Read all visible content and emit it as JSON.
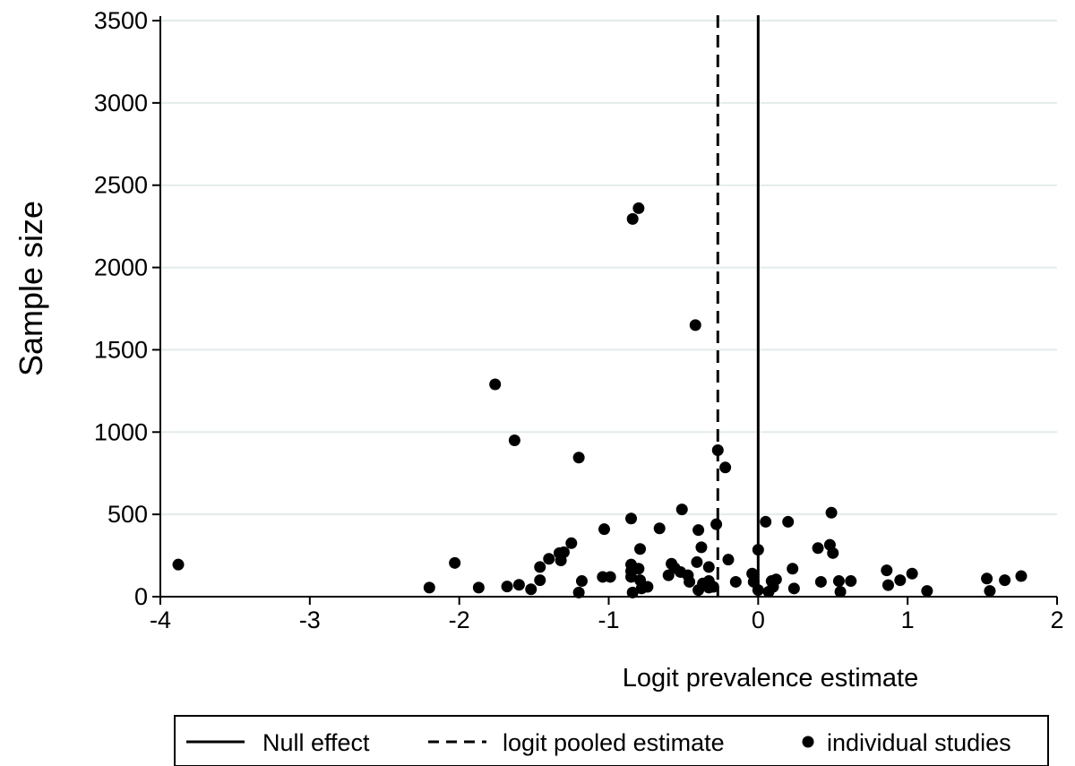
{
  "chart_data": {
    "type": "scatter",
    "title": "",
    "xlabel": "Logit prevalence estimate",
    "ylabel": "Sample size",
    "xlim": [
      -4,
      2
    ],
    "ylim": [
      0,
      3500
    ],
    "x_ticks": [
      -4,
      -3,
      -2,
      -1,
      0,
      1,
      2
    ],
    "y_ticks": [
      0,
      500,
      1000,
      1500,
      2000,
      2500,
      3000,
      3500
    ],
    "grid": "horizontal",
    "legend_position": "bottom",
    "reference_lines": [
      {
        "name": "Null effect",
        "style": "solid",
        "x": 0
      },
      {
        "name": "logit pooled estimate",
        "style": "dashed",
        "x": -0.27
      }
    ],
    "series": [
      {
        "name": "individual studies",
        "points": [
          {
            "x": -3.88,
            "y": 195
          },
          {
            "x": -2.2,
            "y": 55
          },
          {
            "x": -2.03,
            "y": 205
          },
          {
            "x": -1.87,
            "y": 55
          },
          {
            "x": -1.76,
            "y": 1290
          },
          {
            "x": -1.68,
            "y": 62
          },
          {
            "x": -1.63,
            "y": 950
          },
          {
            "x": -1.6,
            "y": 72
          },
          {
            "x": -1.52,
            "y": 45
          },
          {
            "x": -1.46,
            "y": 180
          },
          {
            "x": -1.46,
            "y": 100
          },
          {
            "x": -1.4,
            "y": 230
          },
          {
            "x": -1.33,
            "y": 265
          },
          {
            "x": -1.32,
            "y": 220
          },
          {
            "x": -1.3,
            "y": 270
          },
          {
            "x": -1.25,
            "y": 325
          },
          {
            "x": -1.2,
            "y": 845
          },
          {
            "x": -1.2,
            "y": 25
          },
          {
            "x": -1.18,
            "y": 95
          },
          {
            "x": -1.03,
            "y": 410
          },
          {
            "x": -1.04,
            "y": 120
          },
          {
            "x": -0.99,
            "y": 120
          },
          {
            "x": -0.85,
            "y": 475
          },
          {
            "x": -0.85,
            "y": 195
          },
          {
            "x": -0.85,
            "y": 155
          },
          {
            "x": -0.85,
            "y": 120
          },
          {
            "x": -0.84,
            "y": 2295
          },
          {
            "x": -0.84,
            "y": 25
          },
          {
            "x": -0.8,
            "y": 2360
          },
          {
            "x": -0.8,
            "y": 170
          },
          {
            "x": -0.79,
            "y": 290
          },
          {
            "x": -0.79,
            "y": 100
          },
          {
            "x": -0.78,
            "y": 50
          },
          {
            "x": -0.74,
            "y": 60
          },
          {
            "x": -0.66,
            "y": 415
          },
          {
            "x": -0.6,
            "y": 130
          },
          {
            "x": -0.58,
            "y": 200
          },
          {
            "x": -0.56,
            "y": 175
          },
          {
            "x": -0.52,
            "y": 150
          },
          {
            "x": -0.51,
            "y": 530
          },
          {
            "x": -0.47,
            "y": 130
          },
          {
            "x": -0.46,
            "y": 90
          },
          {
            "x": -0.42,
            "y": 1650
          },
          {
            "x": -0.41,
            "y": 210
          },
          {
            "x": -0.4,
            "y": 405
          },
          {
            "x": -0.4,
            "y": 40
          },
          {
            "x": -0.38,
            "y": 300
          },
          {
            "x": -0.37,
            "y": 80
          },
          {
            "x": -0.33,
            "y": 180
          },
          {
            "x": -0.33,
            "y": 95
          },
          {
            "x": -0.33,
            "y": 55
          },
          {
            "x": -0.3,
            "y": 60
          },
          {
            "x": -0.27,
            "y": 890
          },
          {
            "x": -0.28,
            "y": 440
          },
          {
            "x": -0.22,
            "y": 785
          },
          {
            "x": -0.2,
            "y": 225
          },
          {
            "x": -0.15,
            "y": 90
          },
          {
            "x": -0.04,
            "y": 140
          },
          {
            "x": -0.03,
            "y": 90
          },
          {
            "x": 0.0,
            "y": 285
          },
          {
            "x": 0.0,
            "y": 40
          },
          {
            "x": 0.05,
            "y": 455
          },
          {
            "x": 0.07,
            "y": 30
          },
          {
            "x": 0.09,
            "y": 95
          },
          {
            "x": 0.1,
            "y": 60
          },
          {
            "x": 0.12,
            "y": 105
          },
          {
            "x": 0.2,
            "y": 455
          },
          {
            "x": 0.23,
            "y": 170
          },
          {
            "x": 0.24,
            "y": 50
          },
          {
            "x": 0.4,
            "y": 295
          },
          {
            "x": 0.42,
            "y": 90
          },
          {
            "x": 0.48,
            "y": 315
          },
          {
            "x": 0.49,
            "y": 510
          },
          {
            "x": 0.5,
            "y": 265
          },
          {
            "x": 0.54,
            "y": 95
          },
          {
            "x": 0.55,
            "y": 30
          },
          {
            "x": 0.62,
            "y": 95
          },
          {
            "x": 0.86,
            "y": 160
          },
          {
            "x": 0.87,
            "y": 70
          },
          {
            "x": 0.95,
            "y": 100
          },
          {
            "x": 1.03,
            "y": 140
          },
          {
            "x": 1.13,
            "y": 35
          },
          {
            "x": 1.53,
            "y": 110
          },
          {
            "x": 1.55,
            "y": 35
          },
          {
            "x": 1.65,
            "y": 100
          },
          {
            "x": 1.76,
            "y": 125
          }
        ]
      }
    ]
  },
  "legend": {
    "null_effect_label": "Null effect",
    "pooled_label": "logit pooled estimate",
    "studies_label": "individual studies"
  }
}
